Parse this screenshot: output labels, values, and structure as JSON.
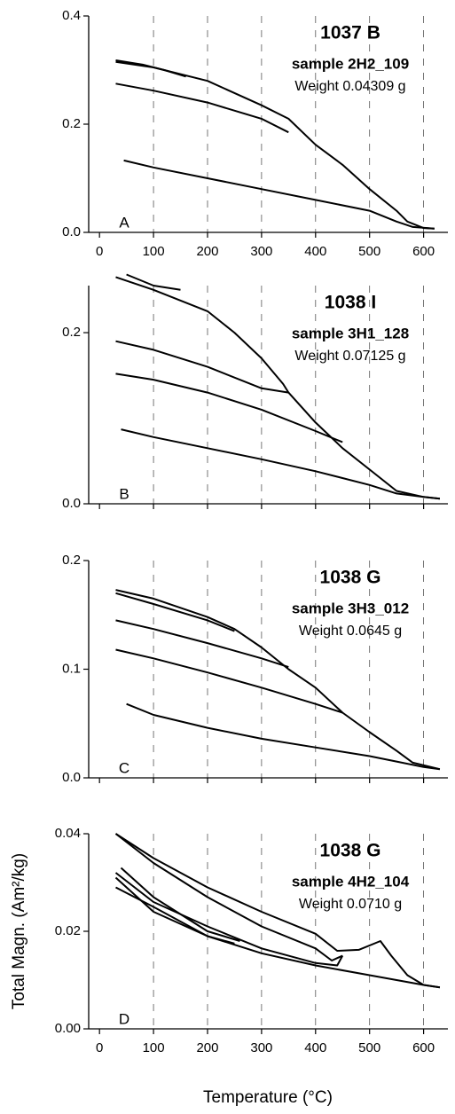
{
  "chart_data": [
    {
      "type": "line",
      "title": "1037 B",
      "subtitle": "sample 2H2_109",
      "annotation": "Weight 0.04309 g",
      "panel_label": "A",
      "xlim": [
        -20,
        645
      ],
      "xticks": [
        0,
        100,
        200,
        300,
        400,
        500,
        600
      ],
      "ylim": [
        0,
        0.4
      ],
      "yticks": [
        {
          "value": 0,
          "label": "0.0"
        },
        0.2,
        0.4
      ],
      "grid": true,
      "color": "#000000",
      "series": [
        {
          "x": [
            30,
            100,
            200,
            300,
            350,
            400,
            450,
            500,
            550,
            570,
            600,
            620
          ],
          "values": [
            0.315,
            0.305,
            0.28,
            0.235,
            0.21,
            0.162,
            0.125,
            0.08,
            0.04,
            0.02,
            0.008,
            0.007
          ]
        },
        {
          "x": [
            30,
            80,
            120,
            160
          ],
          "values": [
            0.318,
            0.31,
            0.3,
            0.288
          ]
        },
        {
          "x": [
            30,
            100,
            200,
            300,
            350
          ],
          "values": [
            0.275,
            0.262,
            0.24,
            0.21,
            0.185
          ]
        },
        {
          "x": [
            45,
            100,
            200,
            300,
            400,
            500,
            550,
            580,
            620
          ],
          "values": [
            0.133,
            0.12,
            0.1,
            0.08,
            0.06,
            0.04,
            0.02,
            0.01,
            0.007
          ]
        }
      ]
    },
    {
      "type": "line",
      "title": "1038 I",
      "subtitle": "sample 3H1_128",
      "annotation": "Weight 0.07125 g",
      "panel_label": "B",
      "xlim": [
        -20,
        645
      ],
      "xticks": [
        0,
        100,
        200,
        300,
        400,
        500,
        600
      ],
      "xtick_labels": false,
      "ylim": [
        0,
        0.255
      ],
      "yticks": [
        {
          "value": 0,
          "label": "0.0"
        },
        0.2
      ],
      "grid": true,
      "color": "#000000",
      "series": [
        {
          "x": [
            30,
            100,
            200,
            250,
            300,
            340,
            350,
            400,
            450,
            500,
            550,
            600,
            630
          ],
          "values": [
            0.265,
            0.25,
            0.225,
            0.2,
            0.17,
            0.14,
            0.13,
            0.095,
            0.065,
            0.04,
            0.015,
            0.008,
            0.006
          ]
        },
        {
          "x": [
            50,
            100,
            150
          ],
          "values": [
            0.268,
            0.255,
            0.25
          ]
        },
        {
          "x": [
            30,
            100,
            200,
            300,
            350
          ],
          "values": [
            0.19,
            0.18,
            0.16,
            0.135,
            0.13
          ]
        },
        {
          "x": [
            30,
            100,
            200,
            300,
            400,
            450
          ],
          "values": [
            0.152,
            0.145,
            0.13,
            0.11,
            0.085,
            0.072
          ]
        },
        {
          "x": [
            40,
            100,
            200,
            300,
            400,
            500,
            550,
            600,
            630
          ],
          "values": [
            0.087,
            0.078,
            0.065,
            0.052,
            0.038,
            0.022,
            0.012,
            0.008,
            0.006
          ]
        }
      ]
    },
    {
      "type": "line",
      "title": "1038 G",
      "subtitle": "sample 3H3_012",
      "annotation": "Weight   0.0645 g",
      "panel_label": "C",
      "xlim": [
        -20,
        645
      ],
      "xticks": [
        0,
        100,
        200,
        300,
        400,
        500,
        600
      ],
      "xtick_labels": false,
      "ylim": [
        0,
        0.2
      ],
      "yticks": [
        {
          "value": 0,
          "label": "0.0"
        },
        0.1,
        0.2
      ],
      "grid": true,
      "color": "#000000",
      "series": [
        {
          "x": [
            30,
            100,
            200,
            250,
            300,
            350,
            400,
            450,
            500,
            550,
            580,
            630
          ],
          "values": [
            0.173,
            0.165,
            0.148,
            0.137,
            0.12,
            0.1,
            0.083,
            0.06,
            0.042,
            0.025,
            0.014,
            0.008
          ]
        },
        {
          "x": [
            30,
            100,
            200,
            250
          ],
          "values": [
            0.17,
            0.16,
            0.145,
            0.135
          ]
        },
        {
          "x": [
            30,
            100,
            200,
            300,
            350
          ],
          "values": [
            0.145,
            0.137,
            0.124,
            0.11,
            0.102
          ]
        },
        {
          "x": [
            30,
            100,
            200,
            300,
            400,
            450
          ],
          "values": [
            0.118,
            0.11,
            0.097,
            0.083,
            0.068,
            0.06
          ]
        },
        {
          "x": [
            50,
            100,
            200,
            300,
            400,
            500,
            550,
            600,
            630
          ],
          "values": [
            0.068,
            0.058,
            0.046,
            0.036,
            0.028,
            0.02,
            0.015,
            0.01,
            0.008
          ]
        }
      ]
    },
    {
      "type": "line",
      "title": "1038 G",
      "subtitle": "sample 4H2_104",
      "annotation": "Weight  0.0710 g",
      "panel_label": "D",
      "xlabel": "Temperature (°C)",
      "ylabel": "Total Magn. (Am²/kg)",
      "xlim": [
        -20,
        645
      ],
      "xticks": [
        0,
        100,
        200,
        300,
        400,
        500,
        600
      ],
      "ylim": [
        0,
        0.04
      ],
      "yticks": [
        {
          "value": 0,
          "label": "0.00"
        },
        0.02,
        0.04
      ],
      "grid": true,
      "color": "#000000",
      "series": [
        {
          "x": [
            30,
            100,
            200,
            300,
            400,
            440,
            480,
            520,
            540,
            570,
            600,
            630
          ],
          "values": [
            0.04,
            0.035,
            0.029,
            0.024,
            0.0195,
            0.016,
            0.0162,
            0.018,
            0.015,
            0.011,
            0.009,
            0.0085
          ]
        },
        {
          "x": [
            30,
            100,
            200,
            300,
            400,
            430,
            450
          ],
          "values": [
            0.04,
            0.034,
            0.027,
            0.021,
            0.0165,
            0.014,
            0.015
          ]
        },
        {
          "x": [
            30,
            100,
            200,
            300,
            400,
            440,
            450
          ],
          "values": [
            0.032,
            0.026,
            0.021,
            0.0165,
            0.0135,
            0.013,
            0.015
          ]
        },
        {
          "x": [
            30,
            100,
            200,
            300,
            400,
            500,
            600,
            630
          ],
          "values": [
            0.029,
            0.025,
            0.019,
            0.0155,
            0.013,
            0.011,
            0.009,
            0.0085
          ]
        },
        {
          "x": [
            40,
            100,
            200,
            260
          ],
          "values": [
            0.033,
            0.027,
            0.02,
            0.018
          ]
        },
        {
          "x": [
            30,
            100,
            200,
            250
          ],
          "values": [
            0.031,
            0.024,
            0.019,
            0.0175
          ]
        }
      ]
    }
  ]
}
